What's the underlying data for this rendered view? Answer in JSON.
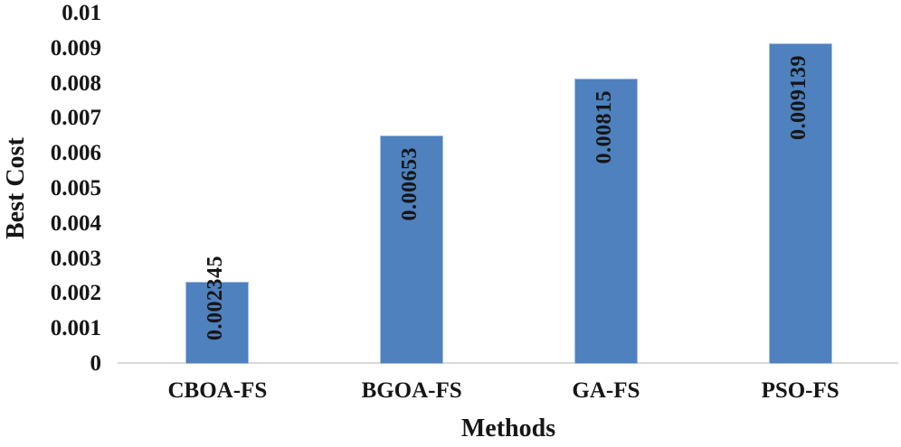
{
  "chart_data": {
    "type": "bar",
    "title": "",
    "xlabel": "Methods",
    "ylabel": "Best Cost",
    "categories": [
      "CBOA-FS",
      "BGOA-FS",
      "GA-FS",
      "PSO-FS"
    ],
    "values": [
      0.002345,
      0.00653,
      0.00815,
      0.009139
    ],
    "data_labels": [
      "0.002345",
      "0.00653",
      "0.00815",
      "0.009139"
    ],
    "ylim": [
      0,
      0.01
    ],
    "ytick_labels": [
      "0",
      "0.001",
      "0.002",
      "0.003",
      "0.004",
      "0.005",
      "0.006",
      "0.007",
      "0.008",
      "0.009",
      "0.01"
    ],
    "grid": false,
    "legend": false,
    "colors": {
      "bar_fill": "#4e81bd",
      "bar_border": "#a3bedf",
      "axis_line": "#d9d9d9",
      "text": "#161616"
    }
  }
}
